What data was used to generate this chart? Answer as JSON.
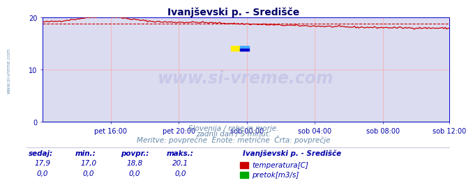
{
  "title": "Ivanjševski p. - Središče",
  "bg_color": "#ffffff",
  "plot_bg_color": "#dcdcf0",
  "grid_color": "#ff9999",
  "x_labels": [
    "pet 16:00",
    "pet 20:00",
    "sob 00:00",
    "sob 04:00",
    "sob 08:00",
    "sob 12:00"
  ],
  "y_min": 0,
  "y_max": 20,
  "y_ticks": [
    0,
    10,
    20
  ],
  "avg_line_value": 18.8,
  "temp_color": "#cc0000",
  "flow_color": "#00aa00",
  "watermark_text": "www.si-vreme.com",
  "watermark_color": "#c8c8e8",
  "footer_line1": "Slovenija / reke in morje.",
  "footer_line2": "zadnji dan / 5 minut.",
  "footer_line3": "Meritve: povprečne  Enote: metrične  Črta: povprečje",
  "footer_color": "#6688aa",
  "label_color": "#0000aa",
  "tick_color": "#0000aa",
  "table_headers": [
    "sedaj:",
    "min.:",
    "povpr.:",
    "maks.:"
  ],
  "table_row1": [
    "17,9",
    "17,0",
    "18,8",
    "20,1"
  ],
  "table_row2": [
    "0,0",
    "0,0",
    "0,0",
    "0,0"
  ],
  "legend_title": "Ivanjševski p. - Središče",
  "legend_items": [
    "temperatura[C]",
    "pretok[m3/s]"
  ],
  "legend_colors": [
    "#cc0000",
    "#00aa00"
  ],
  "side_text": "www.si-vreme.com",
  "side_color": "#7799bb",
  "spine_color": "#0000cc",
  "title_color": "#000066"
}
